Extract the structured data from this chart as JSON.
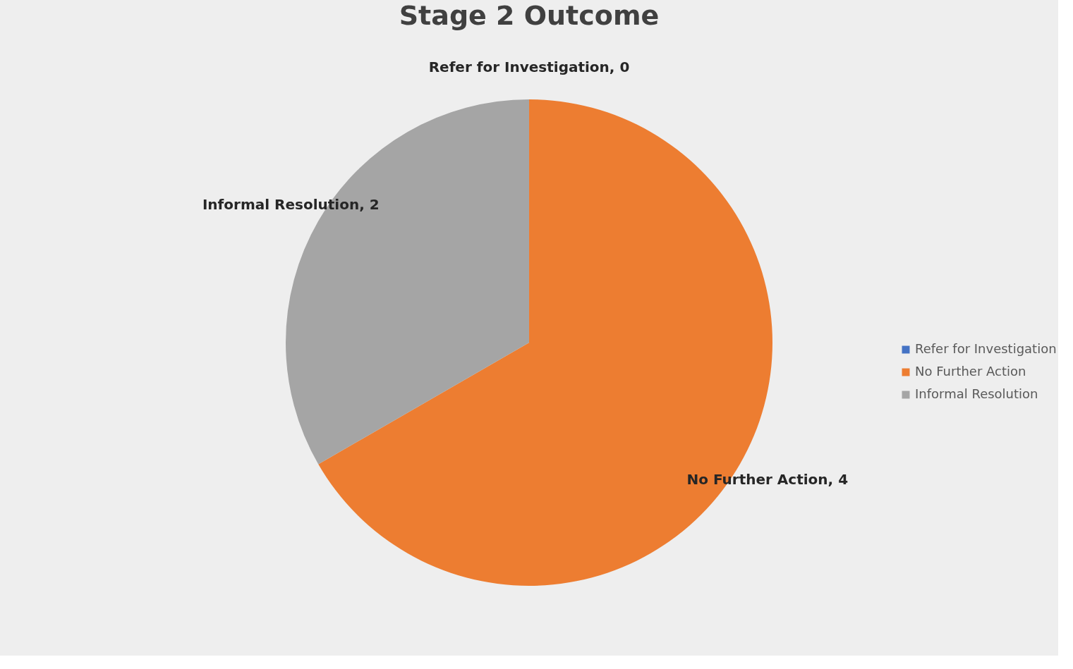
{
  "chart_data": {
    "type": "pie",
    "title": "Stage 2 Outcome",
    "categories": [
      "Refer for Investigation",
      "No Further Action",
      "Informal Resolution"
    ],
    "values": [
      0,
      4,
      2
    ],
    "value_labels": [
      "Refer for Investigation, 0",
      "No Further Action, 4",
      "Informal Resolution, 2"
    ],
    "colors": [
      "#4472c4",
      "#ed7d31",
      "#a5a5a5"
    ],
    "legend": "right"
  }
}
